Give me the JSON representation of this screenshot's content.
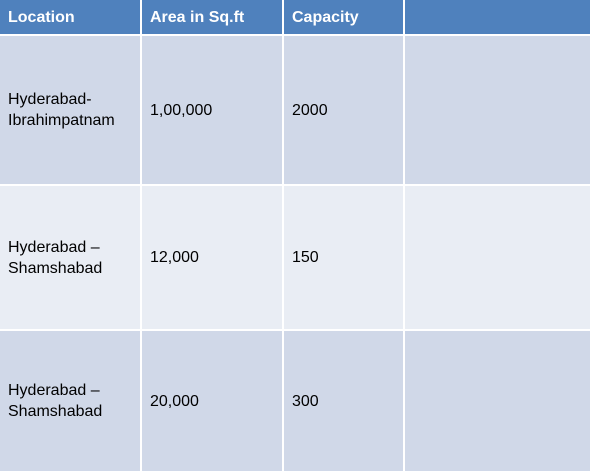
{
  "table": {
    "headers": [
      "Location",
      "Area in Sq.ft",
      "Capacity",
      ""
    ],
    "rows": [
      {
        "location": "Hyderabad-\nIbrahimpatnam",
        "area": "1,00,000",
        "capacity": "2000",
        "extra": ""
      },
      {
        "location": "Hyderabad –\nShamshabad",
        "area": "12,000",
        "capacity": "150",
        "extra": ""
      },
      {
        "location": "Hyderabad –\nShamshabad",
        "area": "20,000",
        "capacity": "300",
        "extra": ""
      }
    ]
  },
  "colors": {
    "header": "#4f81bd",
    "row_dark": "#d0d8e8",
    "row_light": "#e9edf4"
  }
}
